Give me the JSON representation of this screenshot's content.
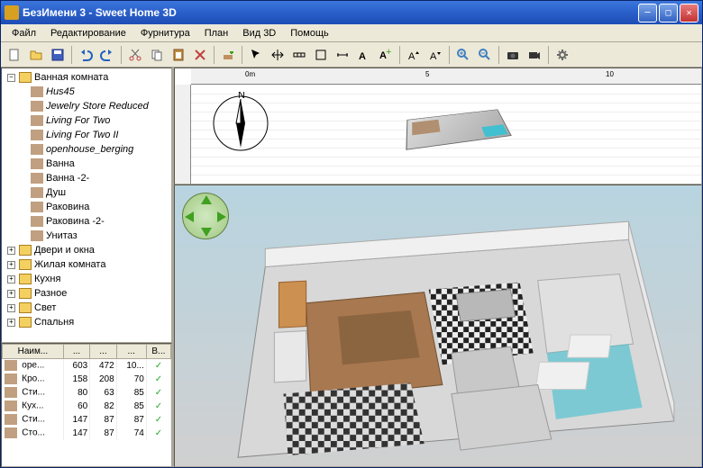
{
  "window": {
    "title": "БезИмени 3 - Sweet Home 3D"
  },
  "menu": [
    "Файл",
    "Редактирование",
    "Фурнитура",
    "План",
    "Вид 3D",
    "Помощь"
  ],
  "ruler": {
    "ticks": [
      "0m",
      "5",
      "10"
    ]
  },
  "tree": {
    "root": "Ванная комната",
    "children": [
      {
        "label": "Hus45",
        "italic": true
      },
      {
        "label": "Jewelry Store Reduced",
        "italic": true
      },
      {
        "label": "Living For Two",
        "italic": true
      },
      {
        "label": "Living For Two II",
        "italic": true
      },
      {
        "label": "openhouse_berging",
        "italic": true
      },
      {
        "label": "Ванна",
        "italic": false
      },
      {
        "label": "Ванна -2-",
        "italic": false
      },
      {
        "label": "Душ",
        "italic": false
      },
      {
        "label": "Раковина",
        "italic": false
      },
      {
        "label": "Раковина -2-",
        "italic": false
      },
      {
        "label": "Унитаз",
        "italic": false
      }
    ],
    "siblings": [
      "Двери и окна",
      "Жилая комната",
      "Кухня",
      "Разное",
      "Свет",
      "Спальня"
    ]
  },
  "table": {
    "headers": [
      "Наим...",
      "...",
      "...",
      "...",
      "В..."
    ],
    "rows": [
      [
        "оре...",
        "603",
        "472",
        "10...",
        "✓"
      ],
      [
        "Кро...",
        "158",
        "208",
        "70",
        "✓"
      ],
      [
        "Сти...",
        "80",
        "63",
        "85",
        "✓"
      ],
      [
        "Кух...",
        "60",
        "82",
        "85",
        "✓"
      ],
      [
        "Сти...",
        "147",
        "87",
        "87",
        "✓"
      ],
      [
        "Сто...",
        "147",
        "87",
        "74",
        "✓"
      ]
    ]
  },
  "colors": {
    "titlebar_start": "#3b77dd",
    "titlebar_end": "#1e4db5",
    "bg": "#ece9d8",
    "tree_bg": "#ffffff",
    "accent": "#316ac5"
  }
}
